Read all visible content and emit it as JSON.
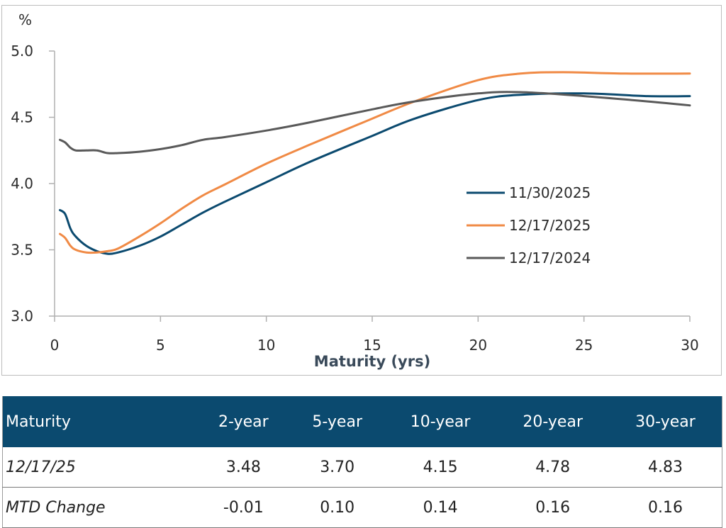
{
  "chart_data": {
    "type": "line",
    "unit_label": "%",
    "xlabel": "Maturity (yrs)",
    "ylabel": "%",
    "xlim": [
      0,
      30
    ],
    "ylim": [
      3.0,
      5.0
    ],
    "x_ticks": [
      0,
      5,
      10,
      15,
      20,
      25,
      30
    ],
    "y_ticks": [
      "3.0",
      "3.5",
      "4.0",
      "4.5",
      "5.0"
    ],
    "legend_position": "right",
    "series": [
      {
        "name": "11/30/2025",
        "color": "#0b4a6f",
        "x": [
          0.25,
          0.5,
          0.75,
          1,
          1.5,
          2,
          2.5,
          3,
          4,
          5,
          6,
          7,
          8,
          10,
          12,
          15,
          17,
          20,
          22,
          25,
          28,
          30
        ],
        "values": [
          3.8,
          3.77,
          3.66,
          3.6,
          3.53,
          3.49,
          3.47,
          3.48,
          3.53,
          3.6,
          3.69,
          3.78,
          3.86,
          4.01,
          4.16,
          4.36,
          4.49,
          4.63,
          4.67,
          4.68,
          4.66,
          4.66
        ]
      },
      {
        "name": "12/17/2025",
        "color": "#f08a45",
        "x": [
          0.25,
          0.5,
          0.75,
          1,
          1.5,
          2,
          2.5,
          3,
          4,
          5,
          6,
          7,
          8,
          10,
          12,
          15,
          17,
          20,
          22,
          24,
          27,
          30
        ],
        "values": [
          3.62,
          3.59,
          3.53,
          3.5,
          3.48,
          3.48,
          3.49,
          3.51,
          3.6,
          3.7,
          3.81,
          3.91,
          3.99,
          4.15,
          4.29,
          4.49,
          4.62,
          4.78,
          4.83,
          4.84,
          4.83,
          4.83
        ]
      },
      {
        "name": "12/17/2024",
        "color": "#595959",
        "x": [
          0.25,
          0.5,
          0.75,
          1,
          1.5,
          2,
          2.5,
          3,
          4,
          5,
          6,
          7,
          8,
          10,
          12,
          15,
          17,
          20,
          22,
          25,
          28,
          30
        ],
        "values": [
          4.33,
          4.31,
          4.27,
          4.25,
          4.25,
          4.25,
          4.23,
          4.23,
          4.24,
          4.26,
          4.29,
          4.33,
          4.35,
          4.4,
          4.46,
          4.56,
          4.62,
          4.68,
          4.69,
          4.66,
          4.62,
          4.59
        ]
      }
    ]
  },
  "table": {
    "headers": [
      "Maturity",
      "2-year",
      "5-year",
      "10-year",
      "20-year",
      "30-year"
    ],
    "rows": [
      [
        "12/17/25",
        "3.48",
        "3.70",
        "4.15",
        "4.78",
        "4.83"
      ],
      [
        "MTD Change",
        "-0.01",
        "0.10",
        "0.14",
        "0.16",
        "0.16"
      ]
    ]
  }
}
